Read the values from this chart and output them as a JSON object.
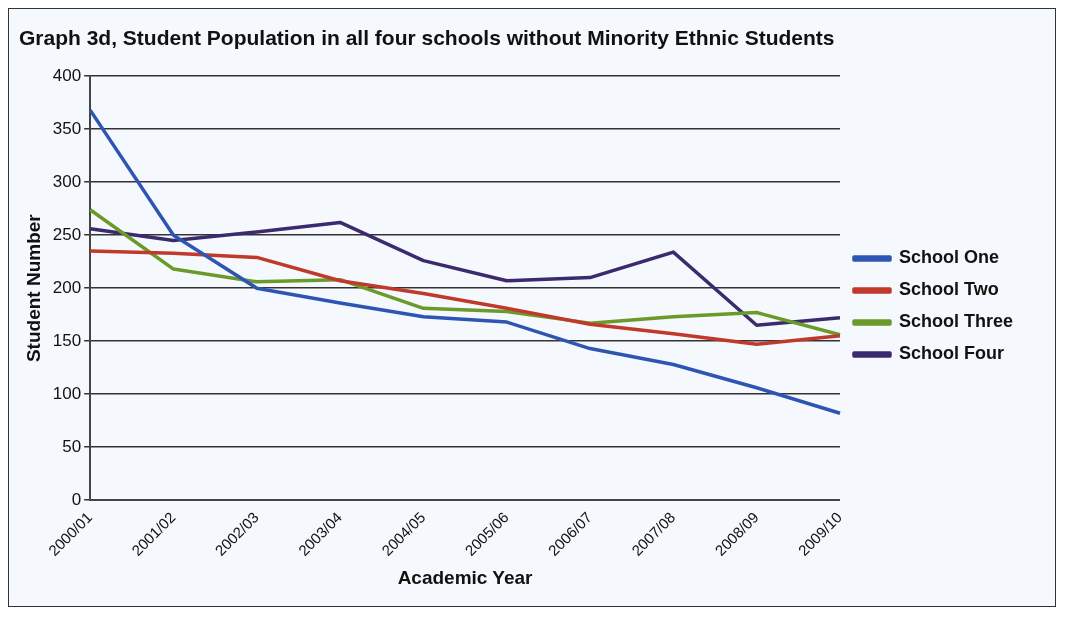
{
  "chart_data": {
    "type": "line",
    "title": "Graph 3d, Student Population in all four schools without Minority Ethnic Students",
    "xlabel": "Academic Year",
    "ylabel": "Student Number",
    "categories": [
      "2000/01",
      "2001/02",
      "2002/03",
      "2003/04",
      "2004/05",
      "2005/06",
      "2006/07",
      "2007/08",
      "2008/09",
      "2009/10"
    ],
    "series": [
      {
        "name": "School One",
        "color": "#2e55b4",
        "values": [
          368,
          250,
          200,
          186,
          173,
          168,
          143,
          128,
          106,
          82
        ]
      },
      {
        "name": "School Two",
        "color": "#c0392b",
        "values": [
          235,
          233,
          229,
          207,
          195,
          181,
          166,
          157,
          147,
          155
        ]
      },
      {
        "name": "School Three",
        "color": "#6a9a2a",
        "values": [
          274,
          218,
          206,
          208,
          181,
          178,
          167,
          173,
          177,
          156
        ]
      },
      {
        "name": "School Four",
        "color": "#3b2a6e",
        "values": [
          256,
          245,
          253,
          262,
          226,
          207,
          210,
          234,
          165,
          172
        ]
      }
    ],
    "ylim": [
      0,
      400
    ],
    "yticks": [
      0,
      50,
      100,
      150,
      200,
      250,
      300,
      350,
      400
    ],
    "grid": "y",
    "legend": "right",
    "marker": "none",
    "line_style": "solid"
  }
}
